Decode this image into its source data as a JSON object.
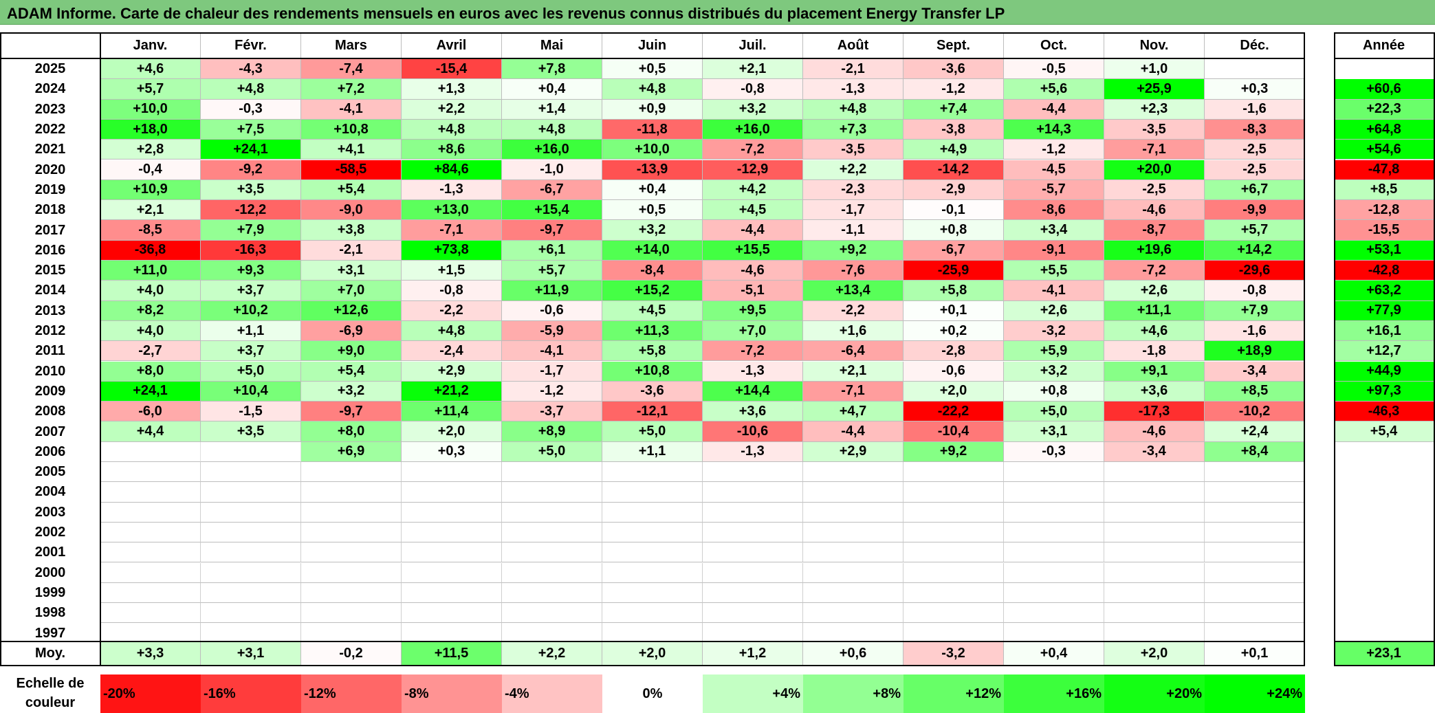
{
  "title": "ADAM Informe. Carte de chaleur des rendements mensuels en euros avec les revenus connus distribués du placement Energy Transfer LP",
  "chart_data": {
    "type": "heatmap",
    "columns": [
      "Janv.",
      "Févr.",
      "Mars",
      "Avril",
      "Mai",
      "Juin",
      "Juil.",
      "Août",
      "Sept.",
      "Oct.",
      "Nov.",
      "Déc."
    ],
    "annual_label": "Année",
    "average_label": "Moy.",
    "rows": [
      {
        "year": "2025",
        "values": [
          "+4,6",
          "-4,3",
          "-7,4",
          "-15,4",
          "+7,8",
          "+0,5",
          "+2,1",
          "-2,1",
          "-3,6",
          "-0,5",
          "+1,0",
          ""
        ],
        "annual": ""
      },
      {
        "year": "2024",
        "values": [
          "+5,7",
          "+4,8",
          "+7,2",
          "+1,3",
          "+0,4",
          "+4,8",
          "-0,8",
          "-1,3",
          "-1,2",
          "+5,6",
          "+25,9",
          "+0,3"
        ],
        "annual": "+60,6"
      },
      {
        "year": "2023",
        "values": [
          "+10,0",
          "-0,3",
          "-4,1",
          "+2,2",
          "+1,4",
          "+0,9",
          "+3,2",
          "+4,8",
          "+7,4",
          "-4,4",
          "+2,3",
          "-1,6"
        ],
        "annual": "+22,3"
      },
      {
        "year": "2022",
        "values": [
          "+18,0",
          "+7,5",
          "+10,8",
          "+4,8",
          "+4,8",
          "-11,8",
          "+16,0",
          "+7,3",
          "-3,8",
          "+14,3",
          "-3,5",
          "-8,3"
        ],
        "annual": "+64,8"
      },
      {
        "year": "2021",
        "values": [
          "+2,8",
          "+24,1",
          "+4,1",
          "+8,6",
          "+16,0",
          "+10,0",
          "-7,2",
          "-3,5",
          "+4,9",
          "-1,2",
          "-7,1",
          "-2,5"
        ],
        "annual": "+54,6"
      },
      {
        "year": "2020",
        "values": [
          "-0,4",
          "-9,2",
          "-58,5",
          "+84,6",
          "-1,0",
          "-13,9",
          "-12,9",
          "+2,2",
          "-14,2",
          "-4,5",
          "+20,0",
          "-2,5"
        ],
        "annual": "-47,8"
      },
      {
        "year": "2019",
        "values": [
          "+10,9",
          "+3,5",
          "+5,4",
          "-1,3",
          "-6,7",
          "+0,4",
          "+4,2",
          "-2,3",
          "-2,9",
          "-5,7",
          "-2,5",
          "+6,7"
        ],
        "annual": "+8,5"
      },
      {
        "year": "2018",
        "values": [
          "+2,1",
          "-12,2",
          "-9,0",
          "+13,0",
          "+15,4",
          "+0,5",
          "+4,5",
          "-1,7",
          "-0,1",
          "-8,6",
          "-4,6",
          "-9,9"
        ],
        "annual": "-12,8"
      },
      {
        "year": "2017",
        "values": [
          "-8,5",
          "+7,9",
          "+3,8",
          "-7,1",
          "-9,7",
          "+3,2",
          "-4,4",
          "-1,1",
          "+0,8",
          "+3,4",
          "-8,7",
          "+5,7"
        ],
        "annual": "-15,5"
      },
      {
        "year": "2016",
        "values": [
          "-36,8",
          "-16,3",
          "-2,1",
          "+73,8",
          "+6,1",
          "+14,0",
          "+15,5",
          "+9,2",
          "-6,7",
          "-9,1",
          "+19,6",
          "+14,2"
        ],
        "annual": "+53,1"
      },
      {
        "year": "2015",
        "values": [
          "+11,0",
          "+9,3",
          "+3,1",
          "+1,5",
          "+5,7",
          "-8,4",
          "-4,6",
          "-7,6",
          "-25,9",
          "+5,5",
          "-7,2",
          "-29,6"
        ],
        "annual": "-42,8"
      },
      {
        "year": "2014",
        "values": [
          "+4,0",
          "+3,7",
          "+7,0",
          "-0,8",
          "+11,9",
          "+15,2",
          "-5,1",
          "+13,4",
          "+5,8",
          "-4,1",
          "+2,6",
          "-0,8"
        ],
        "annual": "+63,2"
      },
      {
        "year": "2013",
        "values": [
          "+8,2",
          "+10,2",
          "+12,6",
          "-2,2",
          "-0,6",
          "+4,5",
          "+9,5",
          "-2,2",
          "+0,1",
          "+2,6",
          "+11,1",
          "+7,9"
        ],
        "annual": "+77,9"
      },
      {
        "year": "2012",
        "values": [
          "+4,0",
          "+1,1",
          "-6,9",
          "+4,8",
          "-5,9",
          "+11,3",
          "+7,0",
          "+1,6",
          "+0,2",
          "-3,2",
          "+4,6",
          "-1,6"
        ],
        "annual": "+16,1"
      },
      {
        "year": "2011",
        "values": [
          "-2,7",
          "+3,7",
          "+9,0",
          "-2,4",
          "-4,1",
          "+5,8",
          "-7,2",
          "-6,4",
          "-2,8",
          "+5,9",
          "-1,8",
          "+18,9"
        ],
        "annual": "+12,7"
      },
      {
        "year": "2010",
        "values": [
          "+8,0",
          "+5,0",
          "+5,4",
          "+2,9",
          "-1,7",
          "+10,8",
          "-1,3",
          "+2,1",
          "-0,6",
          "+3,2",
          "+9,1",
          "-3,4"
        ],
        "annual": "+44,9"
      },
      {
        "year": "2009",
        "values": [
          "+24,1",
          "+10,4",
          "+3,2",
          "+21,2",
          "-1,2",
          "-3,6",
          "+14,4",
          "-7,1",
          "+2,0",
          "+0,8",
          "+3,6",
          "+8,5"
        ],
        "annual": "+97,3"
      },
      {
        "year": "2008",
        "values": [
          "-6,0",
          "-1,5",
          "-9,7",
          "+11,4",
          "-3,7",
          "-12,1",
          "+3,6",
          "+4,7",
          "-22,2",
          "+5,0",
          "-17,3",
          "-10,2"
        ],
        "annual": "-46,3"
      },
      {
        "year": "2007",
        "values": [
          "+4,4",
          "+3,5",
          "+8,0",
          "+2,0",
          "+8,9",
          "+5,0",
          "-10,6",
          "-4,4",
          "-10,4",
          "+3,1",
          "-4,6",
          "+2,4"
        ],
        "annual": "+5,4"
      },
      {
        "year": "2006",
        "values": [
          "",
          "",
          "+6,9",
          "+0,3",
          "+5,0",
          "+1,1",
          "-1,3",
          "+2,9",
          "+9,2",
          "-0,3",
          "-3,4",
          "+8,4"
        ],
        "annual": ""
      },
      {
        "year": "2005",
        "values": [
          "",
          "",
          "",
          "",
          "",
          "",
          "",
          "",
          "",
          "",
          "",
          ""
        ],
        "annual": ""
      },
      {
        "year": "2004",
        "values": [
          "",
          "",
          "",
          "",
          "",
          "",
          "",
          "",
          "",
          "",
          "",
          ""
        ],
        "annual": ""
      },
      {
        "year": "2003",
        "values": [
          "",
          "",
          "",
          "",
          "",
          "",
          "",
          "",
          "",
          "",
          "",
          ""
        ],
        "annual": ""
      },
      {
        "year": "2002",
        "values": [
          "",
          "",
          "",
          "",
          "",
          "",
          "",
          "",
          "",
          "",
          "",
          ""
        ],
        "annual": ""
      },
      {
        "year": "2001",
        "values": [
          "",
          "",
          "",
          "",
          "",
          "",
          "",
          "",
          "",
          "",
          "",
          ""
        ],
        "annual": ""
      },
      {
        "year": "2000",
        "values": [
          "",
          "",
          "",
          "",
          "",
          "",
          "",
          "",
          "",
          "",
          "",
          ""
        ],
        "annual": ""
      },
      {
        "year": "1999",
        "values": [
          "",
          "",
          "",
          "",
          "",
          "",
          "",
          "",
          "",
          "",
          "",
          ""
        ],
        "annual": ""
      },
      {
        "year": "1998",
        "values": [
          "",
          "",
          "",
          "",
          "",
          "",
          "",
          "",
          "",
          "",
          "",
          ""
        ],
        "annual": ""
      },
      {
        "year": "1997",
        "values": [
          "",
          "",
          "",
          "",
          "",
          "",
          "",
          "",
          "",
          "",
          "",
          ""
        ],
        "annual": ""
      }
    ],
    "average": {
      "values": [
        "+3,3",
        "+3,1",
        "-0,2",
        "+11,5",
        "+2,2",
        "+2,0",
        "+1,2",
        "+0,6",
        "-3,2",
        "+0,4",
        "+2,0",
        "+0,1"
      ],
      "annual": "+23,1"
    },
    "annual_2007_note": "",
    "color_scale_label": "Echelle de couleur",
    "color_scale": [
      "-20%",
      "-16%",
      "-12%",
      "-8%",
      "-4%",
      "0%",
      "+4%",
      "+8%",
      "+12%",
      "+16%",
      "+20%",
      "+24%"
    ],
    "colors": {
      "negative_strong": "#ff0000",
      "neutral": "#ffffff",
      "positive_strong": "#00ff00",
      "title_bg": "#7ec87e"
    }
  }
}
